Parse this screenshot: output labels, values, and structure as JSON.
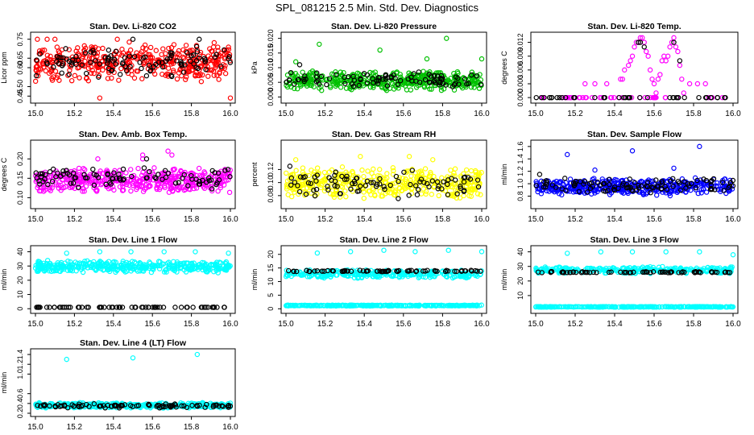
{
  "figure": {
    "title": "SPL_081215  2.5 Min. Std. Dev. Diagnostics"
  },
  "chart_data": [
    {
      "type": "scatter",
      "title": "Stan. Dev. Li-820 CO2",
      "ylabel": "Licor ppm",
      "xlim": [
        15.0,
        16.0
      ],
      "ylim": [
        0.43,
        0.77
      ],
      "xticks": [
        15.0,
        15.2,
        15.4,
        15.6,
        15.8,
        16.0
      ],
      "xtick_labels": [
        "15.0",
        "15.2",
        "15.4",
        "15.6",
        "15.8",
        "16.0"
      ],
      "yticks": [
        0.45,
        0.5,
        0.6,
        0.65,
        0.75
      ],
      "ytick_labels": [
        "0.45",
        "0.50",
        "0.60",
        "0.65",
        "0.75"
      ],
      "series": [
        {
          "name": "primary",
          "color": "#ff0000",
          "band": [
            0.52,
            0.74
          ],
          "n": 420,
          "outliers": [
            [
              15.01,
              0.75
            ],
            [
              15.06,
              0.75
            ],
            [
              15.1,
              0.75
            ],
            [
              15.33,
              0.44
            ],
            [
              15.42,
              0.75
            ],
            [
              16.0,
              0.44
            ]
          ]
        },
        {
          "name": "secondary",
          "color": "#000000",
          "band": [
            0.54,
            0.72
          ],
          "n": 110,
          "outliers": [
            [
              15.5,
              0.75
            ],
            [
              15.84,
              0.75
            ]
          ]
        }
      ]
    },
    {
      "type": "scatter",
      "title": "Stan. Dev. Li-820 Pressure",
      "ylabel": "kPa",
      "xlim": [
        15.0,
        16.0
      ],
      "ylim": [
        -0.001,
        0.021
      ],
      "xticks": [
        15.0,
        15.2,
        15.4,
        15.6,
        15.8,
        16.0
      ],
      "xtick_labels": [
        "15.0",
        "15.2",
        "15.4",
        "15.6",
        "15.8",
        "16.0"
      ],
      "yticks": [
        0.0,
        0.005,
        0.01,
        0.015,
        0.02
      ],
      "ytick_labels": [
        "0.000",
        "0.005",
        "0.010",
        "0.015",
        "0.020"
      ],
      "series": [
        {
          "name": "primary",
          "color": "#00c000",
          "band": [
            0.002,
            0.009
          ],
          "n": 420,
          "outliers": [
            [
              15.05,
              0.012
            ],
            [
              15.17,
              0.018
            ],
            [
              15.48,
              0.016
            ],
            [
              15.72,
              0.013
            ],
            [
              15.82,
              0.02
            ],
            [
              16.0,
              0.013
            ]
          ]
        },
        {
          "name": "secondary",
          "color": "#000000",
          "band": [
            0.003,
            0.009
          ],
          "n": 90,
          "outliers": [
            [
              15.07,
              0.011
            ]
          ]
        }
      ]
    },
    {
      "type": "scatter",
      "title": "Stan. Dev. Li-820 Temp.",
      "ylabel": "degrees C",
      "xlim": [
        15.0,
        16.0
      ],
      "ylim": [
        -0.0005,
        0.0135
      ],
      "xticks": [
        15.0,
        15.2,
        15.4,
        15.6,
        15.8,
        16.0
      ],
      "xtick_labels": [
        "15.0",
        "15.2",
        "15.4",
        "15.6",
        "15.8",
        "16.0"
      ],
      "yticks": [
        0.0,
        0.003,
        0.006,
        0.009,
        0.012
      ],
      "ytick_labels": [
        "0.000",
        "0.003",
        "0.006",
        "0.009",
        "0.012"
      ],
      "series": [
        {
          "name": "primary",
          "color": "#ff00ff",
          "band": [
            0.0,
            0.0
          ],
          "n": 0,
          "outliers": [
            [
              15.25,
              0.003
            ],
            [
              15.3,
              0.003
            ],
            [
              15.36,
              0.003
            ],
            [
              15.43,
              0.004
            ],
            [
              15.44,
              0.004
            ],
            [
              15.45,
              0.006
            ],
            [
              15.47,
              0.007
            ],
            [
              15.48,
              0.008
            ],
            [
              15.49,
              0.009
            ],
            [
              15.5,
              0.011
            ],
            [
              15.51,
              0.012
            ],
            [
              15.52,
              0.012
            ],
            [
              15.53,
              0.013
            ],
            [
              15.54,
              0.013
            ],
            [
              15.55,
              0.012
            ],
            [
              15.56,
              0.01
            ],
            [
              15.57,
              0.009
            ],
            [
              15.58,
              0.006
            ],
            [
              15.59,
              0.004
            ],
            [
              15.6,
              0.003
            ],
            [
              15.61,
              0.001
            ],
            [
              15.62,
              0.004
            ],
            [
              15.63,
              0.005
            ],
            [
              15.64,
              0.008
            ],
            [
              15.65,
              0.009
            ],
            [
              15.66,
              0.008
            ],
            [
              15.67,
              0.009
            ],
            [
              15.68,
              0.011
            ],
            [
              15.69,
              0.012
            ],
            [
              15.7,
              0.013
            ],
            [
              15.71,
              0.011
            ],
            [
              15.72,
              0.01
            ],
            [
              15.73,
              0.007
            ],
            [
              15.74,
              0.004
            ],
            [
              15.75,
              0.001
            ],
            [
              15.78,
              0.003
            ],
            [
              15.82,
              0.003
            ],
            [
              15.86,
              0.003
            ]
          ]
        },
        {
          "name": "secondary",
          "color": "#000000",
          "band": [
            0.0,
            0.0
          ],
          "n": 0,
          "outliers": [
            [
              15.52,
              0.012
            ],
            [
              15.53,
              0.012
            ],
            [
              15.55,
              0.011
            ],
            [
              15.7,
              0.012
            ],
            [
              15.73,
              0.008
            ]
          ]
        },
        {
          "name": "baseline",
          "color": "#ff00ff",
          "band": [
            0.0,
            0.0
          ],
          "n": 42,
          "outliers": []
        },
        {
          "name": "baseline-black",
          "color": "#000000",
          "band": [
            0.0,
            0.0
          ],
          "n": 42,
          "outliers": []
        }
      ]
    },
    {
      "type": "scatter",
      "title": "Stan. Dev. Amb. Box Temp.",
      "ylabel": "degrees C",
      "xlim": [
        15.0,
        16.0
      ],
      "ylim": [
        0.08,
        0.24
      ],
      "xticks": [
        15.0,
        15.2,
        15.4,
        15.6,
        15.8,
        16.0
      ],
      "xtick_labels": [
        "15.0",
        "15.2",
        "15.4",
        "15.6",
        "15.8",
        "16.0"
      ],
      "yticks": [
        0.1,
        0.15,
        0.2
      ],
      "ytick_labels": [
        "0.10",
        "0.15",
        "0.20"
      ],
      "series": [
        {
          "name": "primary",
          "color": "#ff00ff",
          "band": [
            0.11,
            0.18
          ],
          "n": 420,
          "outliers": [
            [
              15.55,
              0.21
            ],
            [
              15.55,
              0.2
            ],
            [
              15.68,
              0.22
            ],
            [
              15.7,
              0.21
            ],
            [
              15.32,
              0.2
            ]
          ]
        },
        {
          "name": "secondary",
          "color": "#000000",
          "band": [
            0.12,
            0.18
          ],
          "n": 90,
          "outliers": [
            [
              15.57,
              0.2
            ]
          ]
        }
      ]
    },
    {
      "type": "scatter",
      "title": "Stan. Dev. Gas Stream RH",
      "ylabel": "percent",
      "xlim": [
        15.0,
        16.0
      ],
      "ylim": [
        0.065,
        0.16
      ],
      "xticks": [
        15.0,
        15.2,
        15.4,
        15.6,
        15.8,
        16.0
      ],
      "xtick_labels": [
        "15.0",
        "15.2",
        "15.4",
        "15.6",
        "15.8",
        "16.0"
      ],
      "yticks": [
        0.08,
        0.1,
        0.12
      ],
      "ytick_labels": [
        "0.08",
        "0.10",
        "0.12"
      ],
      "series": [
        {
          "name": "primary",
          "color": "#ffff00",
          "band": [
            0.073,
            0.125
          ],
          "n": 420,
          "outliers": [
            [
              15.05,
              0.135
            ],
            [
              15.38,
              0.14
            ],
            [
              15.63,
              0.14
            ],
            [
              15.75,
              0.135
            ]
          ]
        },
        {
          "name": "secondary",
          "color": "#000000",
          "band": [
            0.075,
            0.12
          ],
          "n": 90,
          "outliers": [
            [
              15.02,
              0.125
            ]
          ]
        }
      ]
    },
    {
      "type": "scatter",
      "title": "Stan. Dev. Sample Flow",
      "ylabel": "ml/min",
      "xlim": [
        15.0,
        16.0
      ],
      "ylim": [
        0.65,
        1.65
      ],
      "xticks": [
        15.0,
        15.2,
        15.4,
        15.6,
        15.8,
        16.0
      ],
      "xtick_labels": [
        "15.0",
        "15.2",
        "15.4",
        "15.6",
        "15.8",
        "16.0"
      ],
      "yticks": [
        0.8,
        1.0,
        1.2,
        1.4,
        1.6
      ],
      "ytick_labels": [
        "0.8",
        "1.0",
        "1.2",
        "1.4",
        "1.6"
      ],
      "series": [
        {
          "name": "primary",
          "color": "#0000ff",
          "band": [
            0.8,
            1.1
          ],
          "n": 420,
          "outliers": [
            [
              15.16,
              1.47
            ],
            [
              15.49,
              1.53
            ],
            [
              15.83,
              1.6
            ],
            [
              15.3,
              1.22
            ],
            [
              15.7,
              1.25
            ]
          ]
        },
        {
          "name": "secondary",
          "color": "#000000",
          "band": [
            0.85,
            1.1
          ],
          "n": 100,
          "outliers": [
            [
              15.02,
              1.15
            ]
          ]
        }
      ]
    },
    {
      "type": "scatter",
      "title": "Stan. Dev. Line 1 Flow",
      "ylabel": "ml/min",
      "xlim": [
        15.0,
        16.0
      ],
      "ylim": [
        -1,
        42
      ],
      "xticks": [
        15.0,
        15.2,
        15.4,
        15.6,
        15.8,
        16.0
      ],
      "xtick_labels": [
        "15.0",
        "15.2",
        "15.4",
        "15.6",
        "15.8",
        "16.0"
      ],
      "yticks": [
        0,
        10,
        20,
        30,
        40
      ],
      "ytick_labels": [
        "0",
        "10",
        "20",
        "30",
        "40"
      ],
      "series": [
        {
          "name": "primary",
          "color": "#00ffff",
          "band": [
            25,
            34
          ],
          "n": 420,
          "outliers": [
            [
              15.16,
              39
            ],
            [
              15.33,
              40
            ],
            [
              15.49,
              40
            ],
            [
              15.66,
              40
            ],
            [
              15.82,
              40
            ],
            [
              15.99,
              39
            ]
          ]
        },
        {
          "name": "baseline",
          "color": "#000000",
          "band": [
            1,
            1
          ],
          "n": 70,
          "outliers": []
        }
      ]
    },
    {
      "type": "scatter",
      "title": "Stan. Dev. Line 2 Flow",
      "ylabel": "ml/min",
      "xlim": [
        15.0,
        16.0
      ],
      "ylim": [
        -0.5,
        22
      ],
      "xticks": [
        15.0,
        15.2,
        15.4,
        15.6,
        15.8,
        16.0
      ],
      "xtick_labels": [
        "15.0",
        "15.2",
        "15.4",
        "15.6",
        "15.8",
        "16.0"
      ],
      "yticks": [
        0,
        5,
        10,
        15,
        20
      ],
      "ytick_labels": [
        "0",
        "5",
        "10",
        "15",
        "20"
      ],
      "series": [
        {
          "name": "primary",
          "color": "#00ffff",
          "band": [
            11,
            14.5
          ],
          "n": 300,
          "outliers": [
            [
              15.16,
              20.5
            ],
            [
              15.33,
              21
            ],
            [
              15.5,
              21.5
            ],
            [
              15.66,
              21
            ],
            [
              15.83,
              21.5
            ],
            [
              16.0,
              21
            ]
          ]
        },
        {
          "name": "secondary",
          "color": "#000000",
          "band": [
            13.5,
            14.2
          ],
          "n": 70,
          "outliers": []
        },
        {
          "name": "baseline",
          "color": "#00ffff",
          "band": [
            1,
            1.4
          ],
          "n": 300,
          "outliers": []
        }
      ]
    },
    {
      "type": "scatter",
      "title": "Stan. Dev. Line 3 Flow",
      "ylabel": "ml/min",
      "xlim": [
        15.0,
        16.0
      ],
      "ylim": [
        0,
        42
      ],
      "xticks": [
        15.0,
        15.2,
        15.4,
        15.6,
        15.8,
        16.0
      ],
      "xtick_labels": [
        "15.0",
        "15.2",
        "15.4",
        "15.6",
        "15.8",
        "16.0"
      ],
      "yticks": [
        10,
        20,
        30,
        40
      ],
      "ytick_labels": [
        "10",
        "20",
        "30",
        "40"
      ],
      "series": [
        {
          "name": "primary",
          "color": "#00ffff",
          "band": [
            25,
            30
          ],
          "n": 300,
          "outliers": [
            [
              15.16,
              39
            ],
            [
              15.33,
              40
            ],
            [
              15.49,
              40
            ],
            [
              15.66,
              40
            ],
            [
              15.83,
              40
            ],
            [
              16.0,
              38
            ]
          ]
        },
        {
          "name": "secondary",
          "color": "#000000",
          "band": [
            25.5,
            26.5
          ],
          "n": 70,
          "outliers": []
        },
        {
          "name": "baseline",
          "color": "#00ffff",
          "band": [
            2,
            2.5
          ],
          "n": 300,
          "outliers": []
        }
      ]
    },
    {
      "type": "scatter",
      "title": "Stan. Dev. Line 4 (LT) Flow",
      "ylabel": "ml/min",
      "xlim": [
        15.0,
        16.0
      ],
      "ylim": [
        0.2,
        1.45
      ],
      "xticks": [
        15.0,
        15.2,
        15.4,
        15.6,
        15.8,
        16.0
      ],
      "xtick_labels": [
        "15.0",
        "15.2",
        "15.4",
        "15.6",
        "15.8",
        "16.0"
      ],
      "yticks": [
        0.2,
        0.4,
        0.6,
        1.0,
        1.2,
        1.4
      ],
      "ytick_labels": [
        "0.2",
        "0.4",
        "0.6",
        "1.0",
        "1.2",
        "1.4"
      ],
      "series": [
        {
          "name": "primary",
          "color": "#00ffff",
          "band": [
            0.3,
            0.42
          ],
          "n": 420,
          "outliers": [
            [
              15.16,
              1.3
            ],
            [
              15.5,
              1.33
            ],
            [
              15.83,
              1.4
            ]
          ]
        },
        {
          "name": "secondary",
          "color": "#000000",
          "band": [
            0.3,
            0.4
          ],
          "n": 90,
          "outliers": []
        }
      ]
    }
  ]
}
